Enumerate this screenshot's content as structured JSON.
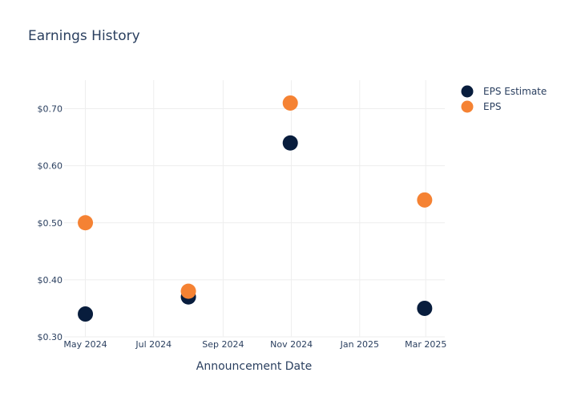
{
  "chart_data": {
    "type": "scatter",
    "title": "Earnings History",
    "xlabel": "Announcement Date",
    "ylabel": "",
    "x_ticks": [
      {
        "date": "2024-05-01",
        "label": "May 2024"
      },
      {
        "date": "2024-07-01",
        "label": "Jul 2024"
      },
      {
        "date": "2024-09-01",
        "label": "Sep 2024"
      },
      {
        "date": "2024-11-01",
        "label": "Nov 2024"
      },
      {
        "date": "2025-01-01",
        "label": "Jan 2025"
      },
      {
        "date": "2025-03-01",
        "label": "Mar 2025"
      }
    ],
    "y_ticks": [
      {
        "value": 0.3,
        "label": "$0.30"
      },
      {
        "value": 0.4,
        "label": "$0.40"
      },
      {
        "value": 0.5,
        "label": "$0.50"
      },
      {
        "value": 0.6,
        "label": "$0.60"
      },
      {
        "value": 0.7,
        "label": "$0.70"
      }
    ],
    "xlim": [
      "2024-04-12",
      "2025-03-18"
    ],
    "ylim": [
      0.3,
      0.75
    ],
    "grid": true,
    "legend_position": "top-right",
    "series": [
      {
        "name": "EPS Estimate",
        "color": "#081d3d",
        "points": [
          {
            "x": "2024-05-01",
            "y": 0.34
          },
          {
            "x": "2024-08-01",
            "y": 0.37
          },
          {
            "x": "2024-10-31",
            "y": 0.64
          },
          {
            "x": "2025-02-28",
            "y": 0.35
          }
        ]
      },
      {
        "name": "EPS",
        "color": "#f58233",
        "points": [
          {
            "x": "2024-05-01",
            "y": 0.5
          },
          {
            "x": "2024-08-01",
            "y": 0.38
          },
          {
            "x": "2024-10-31",
            "y": 0.71
          },
          {
            "x": "2025-02-28",
            "y": 0.54
          }
        ]
      }
    ]
  }
}
